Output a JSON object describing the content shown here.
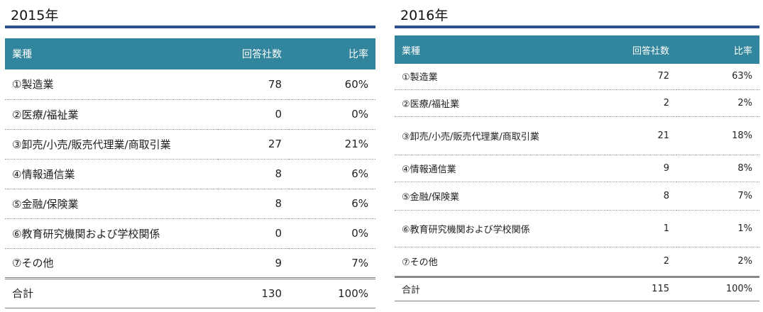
{
  "left": {
    "year_title": "2015年",
    "headers": [
      "業種",
      "回答社数",
      "比率"
    ],
    "rows": [
      {
        "industry": "①製造業",
        "count": "78",
        "ratio": "60%"
      },
      {
        "industry": "②医療/福祉業",
        "count": "0",
        "ratio": "0%"
      },
      {
        "industry": "③卸売/小売/販売代理業/商取引業",
        "count": "27",
        "ratio": "21%"
      },
      {
        "industry": "④情報通信業",
        "count": "8",
        "ratio": "6%"
      },
      {
        "industry": "⑤金融/保険業",
        "count": "8",
        "ratio": "6%"
      },
      {
        "industry": "⑥教育研究機関および学校関係",
        "count": "0",
        "ratio": "0%"
      },
      {
        "industry": "⑦その他",
        "count": "9",
        "ratio": "7%"
      }
    ],
    "total": {
      "label": "合計",
      "count": "130",
      "ratio": "100%"
    }
  },
  "right": {
    "year_title": "2016年",
    "headers": [
      "業種",
      "回答社数",
      "比率"
    ],
    "rows": [
      {
        "industry": "①製造業",
        "count": "72",
        "ratio": "63%"
      },
      {
        "industry": "②医療/福祉業",
        "count": "2",
        "ratio": "2%"
      },
      {
        "industry": "③卸売/小売/販売代理業/商取引業",
        "count": "21",
        "ratio": "18%"
      },
      {
        "industry": "④情報通信業",
        "count": "9",
        "ratio": "8%"
      },
      {
        "industry": "⑤金融/保険業",
        "count": "8",
        "ratio": "7%"
      },
      {
        "industry": "⑥教育研究機関および学校関係",
        "count": "1",
        "ratio": "1%"
      },
      {
        "industry": "⑦その他",
        "count": "2",
        "ratio": "2%"
      }
    ],
    "total": {
      "label": "合計",
      "count": "115",
      "ratio": "100%"
    }
  },
  "colors": {
    "header_bg": "#31859c",
    "title_rule": "#2f4f8f"
  }
}
